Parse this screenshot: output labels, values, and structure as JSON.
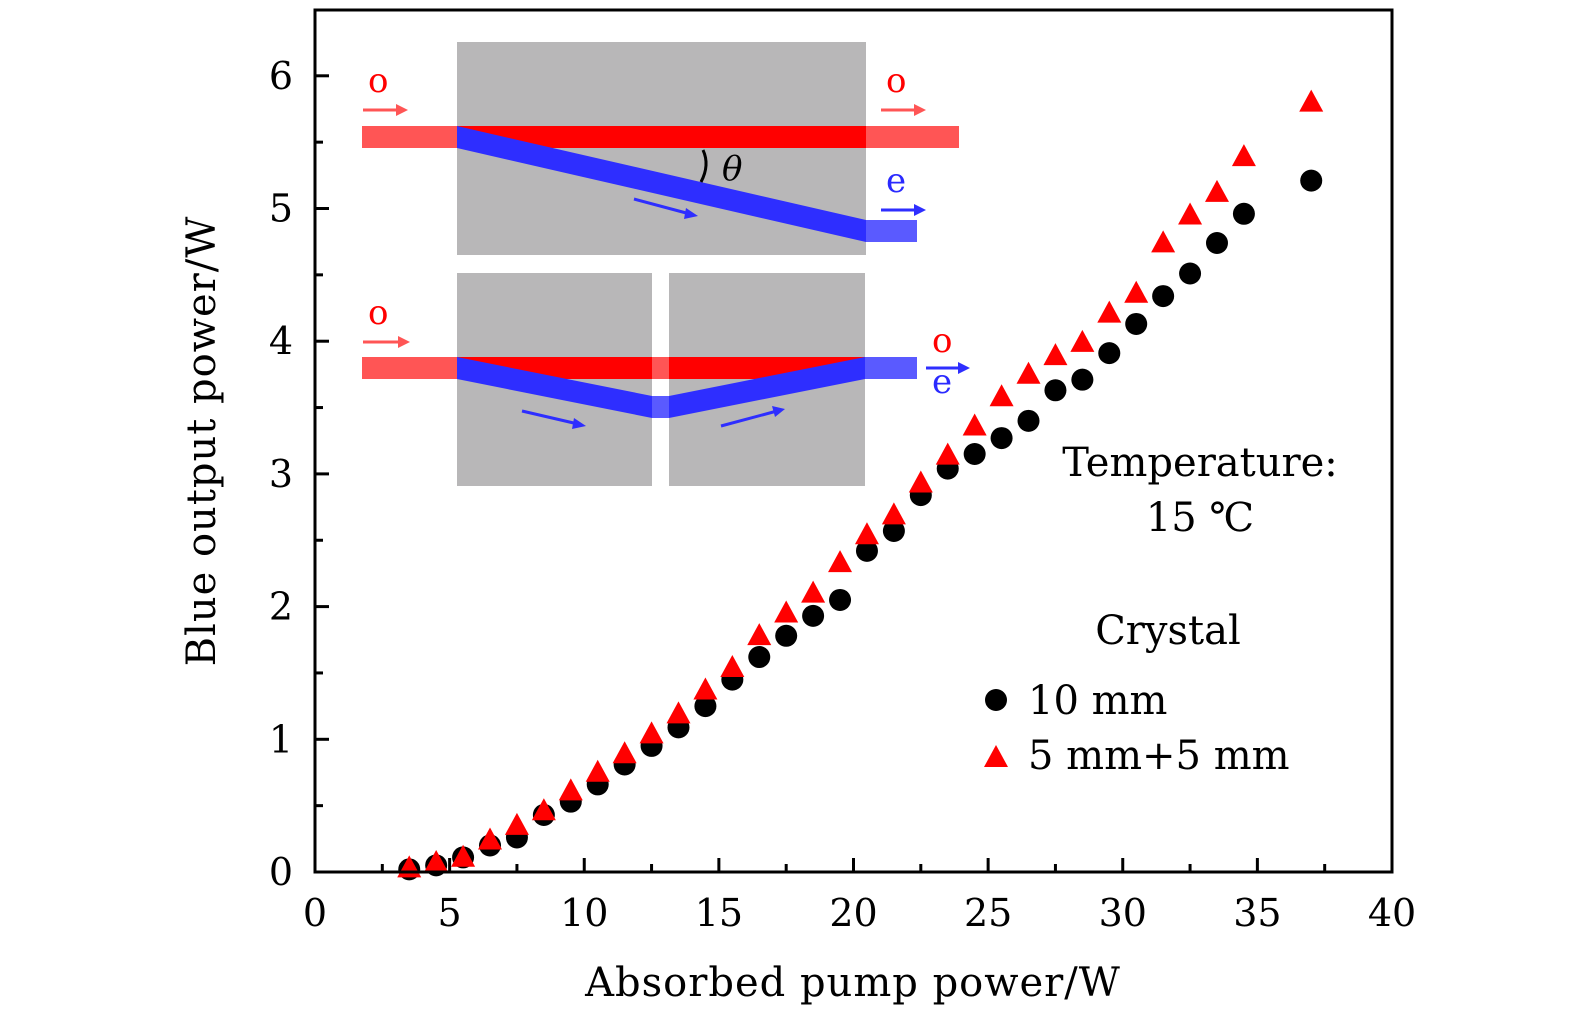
{
  "chart_data": {
    "type": "scatter",
    "title": "",
    "xlabel": "Absorbed pump power/W",
    "ylabel": "Blue output power/W",
    "xlim": [
      0,
      40
    ],
    "ylim": [
      0,
      6.5
    ],
    "xticks": [
      0,
      5,
      10,
      15,
      20,
      25,
      30,
      35,
      40
    ],
    "yticks": [
      0,
      1,
      2,
      3,
      4,
      5,
      6
    ],
    "xtick_labels": [
      "0",
      "5",
      "10",
      "15",
      "20",
      "25",
      "30",
      "35",
      "40"
    ],
    "ytick_labels": [
      "0",
      "1",
      "2",
      "3",
      "4",
      "5",
      "6"
    ],
    "grid": false,
    "legend": {
      "title": "Crystal",
      "position": "bottom-right",
      "entries": [
        "10 mm",
        "5 mm+5 mm"
      ]
    },
    "annotations": {
      "temperature_line1": "Temperature:",
      "temperature_line2": "15 ℃"
    },
    "series": [
      {
        "name": "10 mm",
        "marker": "circle",
        "color": "#000000",
        "x": [
          3.5,
          4.5,
          5.5,
          6.5,
          7.5,
          8.5,
          9.5,
          10.5,
          11.5,
          12.5,
          13.5,
          14.5,
          15.5,
          16.5,
          17.5,
          18.5,
          19.5,
          20.5,
          21.5,
          22.5,
          23.5,
          24.5,
          25.5,
          26.5,
          27.5,
          28.5,
          29.5,
          30.5,
          31.5,
          32.5,
          33.5,
          34.5,
          37.0
        ],
        "y": [
          0.02,
          0.05,
          0.11,
          0.2,
          0.26,
          0.43,
          0.53,
          0.66,
          0.81,
          0.95,
          1.09,
          1.25,
          1.45,
          1.62,
          1.78,
          1.93,
          2.05,
          2.42,
          2.57,
          2.84,
          3.04,
          3.15,
          3.27,
          3.4,
          3.63,
          3.71,
          3.91,
          4.13,
          4.34,
          4.51,
          4.74,
          4.96,
          5.21
        ]
      },
      {
        "name": "5 mm+5 mm",
        "marker": "triangle",
        "color": "#ff0000",
        "x": [
          3.5,
          4.5,
          5.5,
          6.5,
          7.5,
          8.5,
          9.5,
          10.5,
          11.5,
          12.5,
          13.5,
          14.5,
          15.5,
          16.5,
          17.5,
          18.5,
          19.5,
          20.5,
          21.5,
          22.5,
          23.5,
          24.5,
          25.5,
          26.5,
          27.5,
          28.5,
          29.5,
          30.5,
          31.5,
          32.5,
          33.5,
          34.5,
          37.0
        ],
        "y": [
          0.02,
          0.06,
          0.1,
          0.23,
          0.34,
          0.45,
          0.6,
          0.74,
          0.88,
          1.03,
          1.18,
          1.36,
          1.53,
          1.77,
          1.94,
          2.09,
          2.32,
          2.53,
          2.68,
          2.92,
          3.13,
          3.35,
          3.57,
          3.74,
          3.88,
          3.98,
          4.2,
          4.35,
          4.73,
          4.94,
          5.11,
          5.38,
          5.79
        ]
      }
    ]
  },
  "inset": {
    "top_diagram": {
      "input_label": "o",
      "output_o_label": "o",
      "output_e_label": "e",
      "angle_label": "θ"
    },
    "bottom_diagram": {
      "input_label": "o",
      "output_o_label": "o",
      "output_e_label": "e"
    },
    "colors": {
      "crystal": "#b8b7b8",
      "o_beam": "#ff0000",
      "o_beam_outside": "#ff5555",
      "e_beam": "#2e2eff",
      "e_beam_outside": "#5a5aff"
    }
  }
}
